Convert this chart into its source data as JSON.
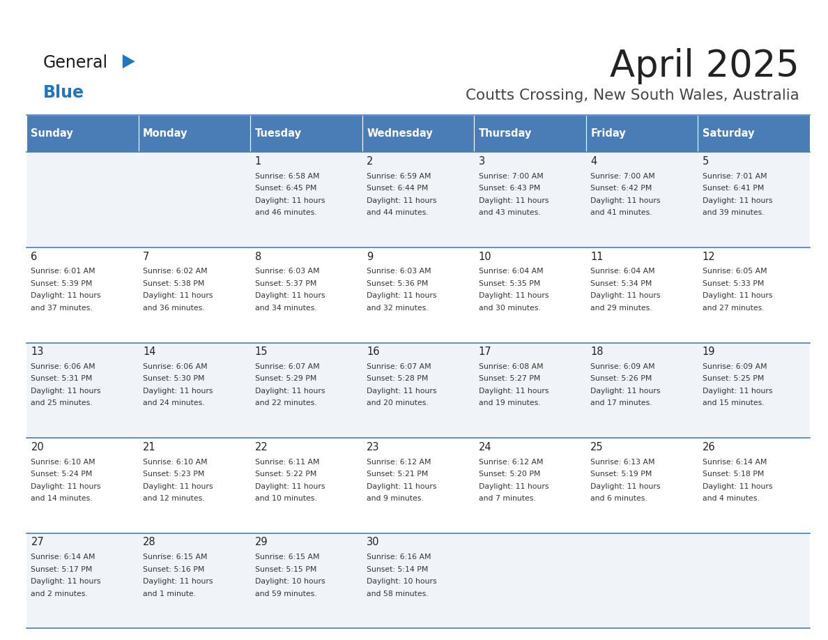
{
  "title": "April 2025",
  "subtitle": "Coutts Crossing, New South Wales, Australia",
  "header_bg": "#4A7DB5",
  "header_text_color": "#FFFFFF",
  "cell_bg_odd": "#F0F4F8",
  "cell_bg_even": "#FFFFFF",
  "day_headers": [
    "Sunday",
    "Monday",
    "Tuesday",
    "Wednesday",
    "Thursday",
    "Friday",
    "Saturday"
  ],
  "title_color": "#222222",
  "subtitle_color": "#444444",
  "day_number_color": "#222222",
  "cell_text_color": "#333333",
  "logo_general_color": "#1a1a1a",
  "logo_blue_color": "#2277BB",
  "divider_color": "#4A7DB5",
  "calendar": [
    [
      {
        "day": null,
        "sunrise": null,
        "sunset": null,
        "daylight": null
      },
      {
        "day": null,
        "sunrise": null,
        "sunset": null,
        "daylight": null
      },
      {
        "day": 1,
        "sunrise": "6:58 AM",
        "sunset": "6:45 PM",
        "daylight": "11 hours\nand 46 minutes."
      },
      {
        "day": 2,
        "sunrise": "6:59 AM",
        "sunset": "6:44 PM",
        "daylight": "11 hours\nand 44 minutes."
      },
      {
        "day": 3,
        "sunrise": "7:00 AM",
        "sunset": "6:43 PM",
        "daylight": "11 hours\nand 43 minutes."
      },
      {
        "day": 4,
        "sunrise": "7:00 AM",
        "sunset": "6:42 PM",
        "daylight": "11 hours\nand 41 minutes."
      },
      {
        "day": 5,
        "sunrise": "7:01 AM",
        "sunset": "6:41 PM",
        "daylight": "11 hours\nand 39 minutes."
      }
    ],
    [
      {
        "day": 6,
        "sunrise": "6:01 AM",
        "sunset": "5:39 PM",
        "daylight": "11 hours\nand 37 minutes."
      },
      {
        "day": 7,
        "sunrise": "6:02 AM",
        "sunset": "5:38 PM",
        "daylight": "11 hours\nand 36 minutes."
      },
      {
        "day": 8,
        "sunrise": "6:03 AM",
        "sunset": "5:37 PM",
        "daylight": "11 hours\nand 34 minutes."
      },
      {
        "day": 9,
        "sunrise": "6:03 AM",
        "sunset": "5:36 PM",
        "daylight": "11 hours\nand 32 minutes."
      },
      {
        "day": 10,
        "sunrise": "6:04 AM",
        "sunset": "5:35 PM",
        "daylight": "11 hours\nand 30 minutes."
      },
      {
        "day": 11,
        "sunrise": "6:04 AM",
        "sunset": "5:34 PM",
        "daylight": "11 hours\nand 29 minutes."
      },
      {
        "day": 12,
        "sunrise": "6:05 AM",
        "sunset": "5:33 PM",
        "daylight": "11 hours\nand 27 minutes."
      }
    ],
    [
      {
        "day": 13,
        "sunrise": "6:06 AM",
        "sunset": "5:31 PM",
        "daylight": "11 hours\nand 25 minutes."
      },
      {
        "day": 14,
        "sunrise": "6:06 AM",
        "sunset": "5:30 PM",
        "daylight": "11 hours\nand 24 minutes."
      },
      {
        "day": 15,
        "sunrise": "6:07 AM",
        "sunset": "5:29 PM",
        "daylight": "11 hours\nand 22 minutes."
      },
      {
        "day": 16,
        "sunrise": "6:07 AM",
        "sunset": "5:28 PM",
        "daylight": "11 hours\nand 20 minutes."
      },
      {
        "day": 17,
        "sunrise": "6:08 AM",
        "sunset": "5:27 PM",
        "daylight": "11 hours\nand 19 minutes."
      },
      {
        "day": 18,
        "sunrise": "6:09 AM",
        "sunset": "5:26 PM",
        "daylight": "11 hours\nand 17 minutes."
      },
      {
        "day": 19,
        "sunrise": "6:09 AM",
        "sunset": "5:25 PM",
        "daylight": "11 hours\nand 15 minutes."
      }
    ],
    [
      {
        "day": 20,
        "sunrise": "6:10 AM",
        "sunset": "5:24 PM",
        "daylight": "11 hours\nand 14 minutes."
      },
      {
        "day": 21,
        "sunrise": "6:10 AM",
        "sunset": "5:23 PM",
        "daylight": "11 hours\nand 12 minutes."
      },
      {
        "day": 22,
        "sunrise": "6:11 AM",
        "sunset": "5:22 PM",
        "daylight": "11 hours\nand 10 minutes."
      },
      {
        "day": 23,
        "sunrise": "6:12 AM",
        "sunset": "5:21 PM",
        "daylight": "11 hours\nand 9 minutes."
      },
      {
        "day": 24,
        "sunrise": "6:12 AM",
        "sunset": "5:20 PM",
        "daylight": "11 hours\nand 7 minutes."
      },
      {
        "day": 25,
        "sunrise": "6:13 AM",
        "sunset": "5:19 PM",
        "daylight": "11 hours\nand 6 minutes."
      },
      {
        "day": 26,
        "sunrise": "6:14 AM",
        "sunset": "5:18 PM",
        "daylight": "11 hours\nand 4 minutes."
      }
    ],
    [
      {
        "day": 27,
        "sunrise": "6:14 AM",
        "sunset": "5:17 PM",
        "daylight": "11 hours\nand 2 minutes."
      },
      {
        "day": 28,
        "sunrise": "6:15 AM",
        "sunset": "5:16 PM",
        "daylight": "11 hours\nand 1 minute."
      },
      {
        "day": 29,
        "sunrise": "6:15 AM",
        "sunset": "5:15 PM",
        "daylight": "10 hours\nand 59 minutes."
      },
      {
        "day": 30,
        "sunrise": "6:16 AM",
        "sunset": "5:14 PM",
        "daylight": "10 hours\nand 58 minutes."
      },
      {
        "day": null,
        "sunrise": null,
        "sunset": null,
        "daylight": null
      },
      {
        "day": null,
        "sunrise": null,
        "sunset": null,
        "daylight": null
      },
      {
        "day": null,
        "sunrise": null,
        "sunset": null,
        "daylight": null
      }
    ]
  ]
}
